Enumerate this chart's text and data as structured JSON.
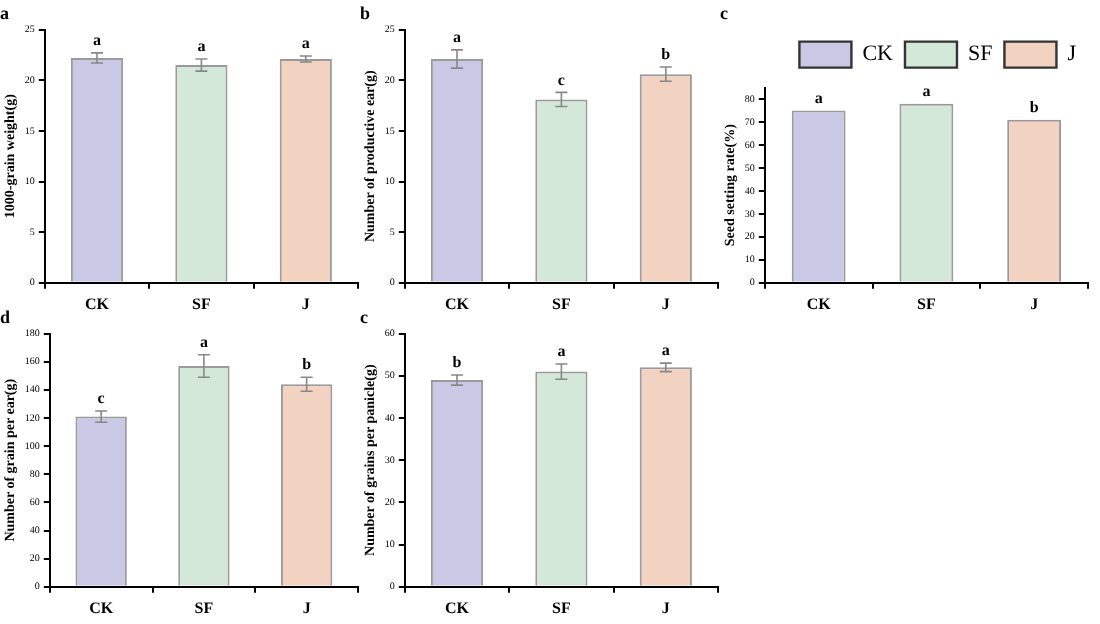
{
  "chart_data": [
    {
      "type": "bar",
      "title": "a",
      "ylabel": "1000-grain weight(g)",
      "categories": [
        "CK",
        "SF",
        "J"
      ],
      "ylim": [
        0,
        25
      ],
      "yticks": [
        0,
        5,
        10,
        15,
        20,
        25
      ],
      "series": [
        {
          "color": "#c9c9e6",
          "values": [
            22.2,
            null,
            null
          ],
          "errors": [
            0.5,
            null,
            null
          ]
        },
        {
          "color": "#d4e8da",
          "values": [
            null,
            21.5,
            null
          ],
          "errors": [
            null,
            0.6,
            null
          ]
        },
        {
          "color": "#f2d2c0",
          "values": [
            null,
            null,
            22.1
          ],
          "errors": [
            null,
            null,
            0.3
          ]
        }
      ],
      "annotations": [
        {
          "text": "a",
          "x": "CK",
          "y": 22.7
        },
        {
          "text": "a",
          "x": "SF",
          "y": 22.1
        },
        {
          "text": "a",
          "x": "J",
          "y": 22.4
        }
      ]
    },
    {
      "type": "bar",
      "title": "b",
      "ylabel": "Number of productive ear(g)",
      "categories": [
        "CK",
        "SF",
        "J"
      ],
      "ylim": [
        0,
        25
      ],
      "yticks": [
        0,
        5,
        10,
        15,
        20,
        25
      ],
      "series": [
        {
          "color": "#c9c9e6",
          "values": [
            22.1,
            null,
            null
          ],
          "errors": [
            0.9,
            null,
            null
          ]
        },
        {
          "color": "#d4e8da",
          "values": [
            null,
            18.1,
            null
          ],
          "errors": [
            null,
            0.7,
            null
          ]
        },
        {
          "color": "#f2d2c0",
          "values": [
            null,
            null,
            20.6
          ],
          "errors": [
            null,
            null,
            0.7
          ]
        }
      ],
      "annotations": [
        {
          "text": "a",
          "x": "CK",
          "y": 23
        },
        {
          "text": "c",
          "x": "SF",
          "y": 18.8
        },
        {
          "text": "b",
          "x": "J",
          "y": 21.3
        }
      ]
    },
    {
      "type": "bar",
      "title": "c",
      "ylabel": "Seed setting rate(%)",
      "categories": [
        "CK",
        "SF",
        "J"
      ],
      "ylim": [
        0,
        85
      ],
      "yticks": [
        0,
        10,
        20,
        30,
        40,
        50,
        60,
        70,
        80
      ],
      "legend": "top right",
      "series": [
        {
          "name": "CK",
          "color": "#c9c9e6",
          "values": [
            75,
            null,
            null
          ]
        },
        {
          "name": "SF",
          "color": "#d4e8da",
          "values": [
            null,
            78,
            null
          ]
        },
        {
          "name": "J",
          "color": "#f2d2c0",
          "values": [
            null,
            null,
            71
          ]
        }
      ],
      "annotations": [
        {
          "text": "a",
          "x": "CK",
          "y": 75
        },
        {
          "text": "a",
          "x": "SF",
          "y": 78
        },
        {
          "text": "b",
          "x": "J",
          "y": 71
        }
      ]
    },
    {
      "type": "bar",
      "title": "d",
      "ylabel": "Number of grain per ear(g)",
      "categories": [
        "CK",
        "SF",
        "J"
      ],
      "ylim": [
        0,
        180
      ],
      "yticks": [
        0,
        20,
        40,
        60,
        80,
        100,
        120,
        140,
        160,
        180
      ],
      "series": [
        {
          "color": "#c9c9e6",
          "values": [
            121,
            null,
            null
          ],
          "errors": [
            4,
            null,
            null
          ]
        },
        {
          "color": "#d4e8da",
          "values": [
            null,
            157,
            null
          ],
          "errors": [
            null,
            8,
            null
          ]
        },
        {
          "color": "#f2d2c0",
          "values": [
            null,
            null,
            144
          ],
          "errors": [
            null,
            null,
            5
          ]
        }
      ],
      "annotations": [
        {
          "text": "c",
          "x": "CK",
          "y": 125
        },
        {
          "text": "a",
          "x": "SF",
          "y": 165
        },
        {
          "text": "b",
          "x": "J",
          "y": 149
        }
      ]
    },
    {
      "type": "bar",
      "title": "c",
      "ylabel": "Number of grains per panicle(g)",
      "categories": [
        "CK",
        "SF",
        "J"
      ],
      "ylim": [
        0,
        60
      ],
      "yticks": [
        0,
        10,
        20,
        30,
        40,
        50,
        60
      ],
      "series": [
        {
          "color": "#c9c9e6",
          "values": [
            49,
            null,
            null
          ],
          "errors": [
            1.2,
            null,
            null
          ]
        },
        {
          "color": "#d4e8da",
          "values": [
            null,
            51,
            null
          ],
          "errors": [
            null,
            1.8,
            null
          ]
        },
        {
          "color": "#f2d2c0",
          "values": [
            null,
            null,
            52
          ],
          "errors": [
            null,
            null,
            1
          ]
        }
      ],
      "annotations": [
        {
          "text": "b",
          "x": "CK",
          "y": 50.2
        },
        {
          "text": "a",
          "x": "SF",
          "y": 52.8
        },
        {
          "text": "a",
          "x": "J",
          "y": 53
        }
      ]
    }
  ]
}
